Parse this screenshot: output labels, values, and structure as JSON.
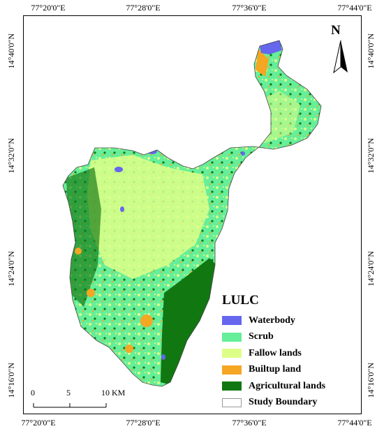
{
  "map": {
    "north_label": "N",
    "top_labels": [
      "77°20'0\"E",
      "77°28'0\"E",
      "77°36'0\"E",
      "77°44'0\"E"
    ],
    "bottom_labels": [
      "77°20'0\"E",
      "77°28'0\"E",
      "77°36'0\"E",
      "77°44'0\"E"
    ],
    "left_labels": [
      "14°40'0\"N",
      "14°32'0\"N",
      "14°24'0\"N",
      "14°16'0\"N"
    ],
    "right_labels": [
      "14°40'0\"N",
      "14°32'0\"N",
      "14°24'0\"N",
      "14°16'0\"N"
    ],
    "scale": {
      "ticks": [
        "0",
        "5",
        "10 KM"
      ]
    }
  },
  "legend": {
    "title": "LULC",
    "items": [
      {
        "label": "Waterbody",
        "color": "#6666ee"
      },
      {
        "label": "Scrub",
        "color": "#66ee99"
      },
      {
        "label": "Fallow lands",
        "color": "#ddff88"
      },
      {
        "label": "Builtup land",
        "color": "#f5a623"
      },
      {
        "label": "Agricultural lands",
        "color": "#117711"
      },
      {
        "label": "Study Boundary",
        "color": "#ffffff"
      }
    ]
  }
}
